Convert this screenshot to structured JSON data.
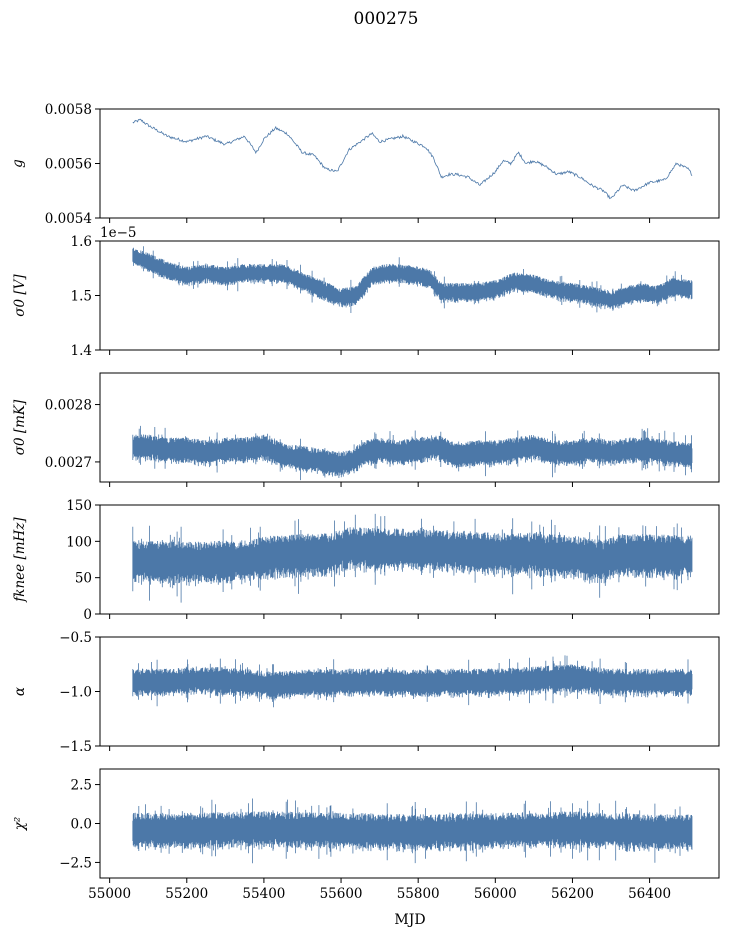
{
  "chart_data": {
    "type": "line",
    "title": "000275",
    "xlabel": "MJD",
    "xlim": [
      54975,
      56580
    ],
    "xticks": [
      "55000",
      "55200",
      "55400",
      "55600",
      "55800",
      "56000",
      "56200",
      "56400"
    ],
    "data_range": [
      55060,
      56510
    ],
    "panels": [
      {
        "id": "g",
        "ylabel": "g",
        "ylim": [
          0.0054,
          0.0058
        ],
        "yticks": [
          "0.0054",
          "0.0056",
          "0.0058"
        ],
        "offset_text": "",
        "style": "line",
        "series": [
          {
            "x": [
              55060,
              55080,
              55100,
              55150,
              55200,
              55250,
              55300,
              55350,
              55380,
              55400,
              55430,
              55460,
              55500,
              55530,
              55560,
              55590,
              55620,
              55650,
              55680,
              55700,
              55730,
              55760,
              55790,
              55820,
              55840,
              55860,
              55880,
              55900,
              55930,
              55960,
              56000,
              56020,
              56040,
              56060,
              56080,
              56100,
              56130,
              56160,
              56190,
              56220,
              56250,
              56280,
              56300,
              56330,
              56360,
              56400,
              56440,
              56470,
              56500,
              56510
            ],
            "y": [
              0.00575,
              0.00576,
              0.00574,
              0.0057,
              0.00568,
              0.0057,
              0.00567,
              0.0057,
              0.00564,
              0.00569,
              0.00573,
              0.00571,
              0.00564,
              0.00563,
              0.00558,
              0.00557,
              0.00565,
              0.00568,
              0.00571,
              0.00568,
              0.00569,
              0.0057,
              0.00568,
              0.00566,
              0.00562,
              0.00555,
              0.00556,
              0.00556,
              0.00555,
              0.00552,
              0.00557,
              0.00561,
              0.0056,
              0.00564,
              0.0056,
              0.00561,
              0.00559,
              0.00556,
              0.00557,
              0.00555,
              0.00552,
              0.0055,
              0.00547,
              0.00552,
              0.0055,
              0.00553,
              0.00554,
              0.0056,
              0.00558,
              0.00556
            ]
          }
        ]
      },
      {
        "id": "sigma0_V",
        "ylabel": "σ0 [V]",
        "ylim": [
          1.4,
          1.6
        ],
        "yticks": [
          "1.4",
          "1.5",
          "1.6"
        ],
        "offset_text": "1e−5",
        "style": "band",
        "series": [
          {
            "x": [
              55060,
              55100,
              55150,
              55200,
              55250,
              55300,
              55350,
              55400,
              55450,
              55500,
              55550,
              55600,
              55640,
              55680,
              55720,
              55760,
              55800,
              55830,
              55860,
              55900,
              55950,
              56000,
              56050,
              56100,
              56150,
              56200,
              56240,
              56280,
              56300,
              56340,
              56380,
              56420,
              56460,
              56510
            ],
            "y": [
              1.572,
              1.56,
              1.545,
              1.535,
              1.54,
              1.535,
              1.54,
              1.54,
              1.54,
              1.525,
              1.51,
              1.495,
              1.5,
              1.535,
              1.54,
              1.54,
              1.535,
              1.53,
              1.505,
              1.505,
              1.505,
              1.51,
              1.525,
              1.52,
              1.51,
              1.505,
              1.5,
              1.495,
              1.49,
              1.5,
              1.505,
              1.5,
              1.515,
              1.51
            ]
          }
        ]
      },
      {
        "id": "sigma0_mK",
        "ylabel": "σ0 [mK]",
        "ylim": [
          0.002665,
          0.002855
        ],
        "yticks": [
          "0.0027",
          "0.0028"
        ],
        "offset_text": "",
        "style": "band",
        "series": [
          {
            "x": [
              55060,
              55100,
              55150,
              55200,
              55250,
              55300,
              55350,
              55400,
              55450,
              55500,
              55550,
              55600,
              55630,
              55660,
              55700,
              55750,
              55800,
              55850,
              55900,
              55950,
              56000,
              56050,
              56100,
              56150,
              56200,
              56250,
              56300,
              56350,
              56400,
              56450,
              56510
            ],
            "y": [
              0.002725,
              0.002725,
              0.00272,
              0.00272,
              0.002715,
              0.00272,
              0.00272,
              0.002725,
              0.00271,
              0.002705,
              0.0027,
              0.002695,
              0.0027,
              0.002715,
              0.00272,
              0.002715,
              0.00272,
              0.002725,
              0.00271,
              0.002715,
              0.002715,
              0.00272,
              0.002725,
              0.002715,
              0.002715,
              0.00272,
              0.002715,
              0.00272,
              0.00272,
              0.002715,
              0.00271
            ]
          }
        ]
      },
      {
        "id": "fknee",
        "ylabel": "fknee [mHz]",
        "ylim": [
          0,
          150
        ],
        "yticks": [
          "0",
          "50",
          "100",
          "150"
        ],
        "offset_text": "",
        "style": "band",
        "series": [
          {
            "x": [
              55060,
              55150,
              55250,
              55350,
              55420,
              55500,
              55580,
              55620,
              55700,
              55800,
              55900,
              56000,
              56100,
              56200,
              56280,
              56320,
              56400,
              56510
            ],
            "y": [
              72,
              70,
              70,
              72,
              78,
              80,
              82,
              90,
              88,
              88,
              85,
              82,
              82,
              78,
              72,
              80,
              80,
              78
            ]
          }
        ]
      },
      {
        "id": "alpha",
        "ylabel": "α",
        "ylim": [
          -1.5,
          -0.5
        ],
        "yticks": [
          "−1.5",
          "−1.0",
          "−0.5"
        ],
        "offset_text": "",
        "style": "band",
        "series": [
          {
            "x": [
              55060,
              55150,
              55250,
              55350,
              55420,
              55500,
              55600,
              55700,
              55800,
              55900,
              56000,
              56100,
              56200,
              56300,
              56400,
              56510
            ],
            "y": [
              -0.92,
              -0.92,
              -0.9,
              -0.92,
              -0.95,
              -0.93,
              -0.92,
              -0.92,
              -0.93,
              -0.92,
              -0.92,
              -0.9,
              -0.88,
              -0.92,
              -0.92,
              -0.92
            ]
          }
        ]
      },
      {
        "id": "chi2",
        "ylabel": "χ²",
        "ylim": [
          -3.5,
          3.5
        ],
        "yticks": [
          "−2.5",
          "0.0",
          "2.5"
        ],
        "offset_text": "",
        "style": "band",
        "series": [
          {
            "x": [
              55060,
              55200,
              55400,
              55600,
              55800,
              56000,
              56200,
              56400,
              56510
            ],
            "y": [
              -0.5,
              -0.5,
              -0.4,
              -0.5,
              -0.6,
              -0.5,
              -0.4,
              -0.6,
              -0.6
            ]
          }
        ]
      }
    ],
    "color": "#4c78a8"
  }
}
